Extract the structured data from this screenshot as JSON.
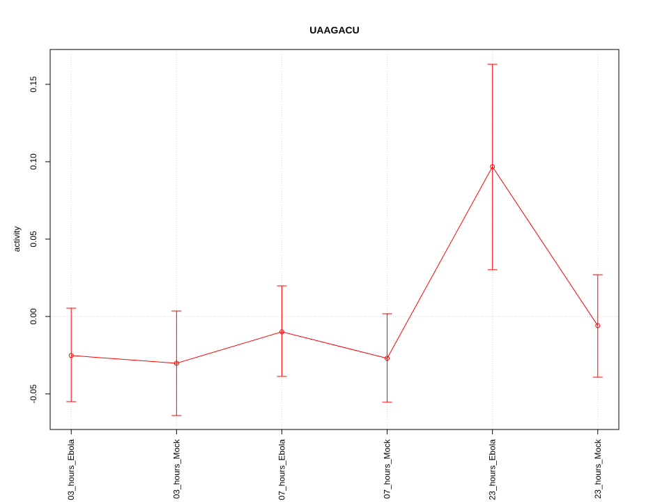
{
  "chart_data": {
    "type": "line",
    "title": "UAAGACU",
    "y_label": "activity",
    "categories": [
      "03_hours_Ebola",
      "03_hours_Mock",
      "07_hours_Ebola",
      "07_hours_Mock",
      "23_hours_Ebola",
      "23_hours_Mock"
    ],
    "series": [
      {
        "name": "activity",
        "color": "#ff0000",
        "values": [
          -0.0252,
          -0.0302,
          -0.0099,
          -0.027,
          0.0968,
          -0.0059
        ],
        "upper": [
          0.0054,
          0.0036,
          0.0198,
          0.0018,
          0.163,
          0.027
        ],
        "lower": [
          -0.055,
          -0.064,
          -0.0387,
          -0.0554,
          0.0302,
          -0.0392
        ]
      }
    ],
    "ylim": [
      -0.073,
      0.1725
    ],
    "yticks": [
      -0.05,
      {
        "value": 0,
        "label": "0.00"
      },
      0.05,
      {
        "value": 0.1,
        "label": "0.10"
      },
      0.15
    ],
    "reference_line": 0,
    "grid": true
  }
}
